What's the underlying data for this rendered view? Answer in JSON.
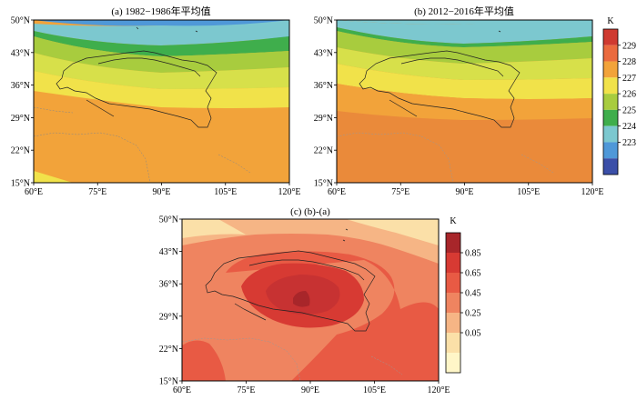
{
  "panels": [
    {
      "id": "a",
      "title": "(a) 1982−1986年平均值",
      "unit": "K",
      "lat_ticks": [
        "50°N",
        "43°N",
        "36°N",
        "29°N",
        "22°N",
        "15°N"
      ],
      "lon_ticks": [
        "60°E",
        "75°E",
        "90°E",
        "105°E",
        "120°E"
      ],
      "lon_range": [
        60,
        120
      ],
      "lat_range": [
        15,
        50
      ]
    },
    {
      "id": "b",
      "title": "(b) 2012−2016年平均值",
      "unit": "K",
      "lat_ticks": [
        "50°N",
        "43°N",
        "36°N",
        "29°N",
        "22°N",
        "15°N"
      ],
      "lon_ticks": [
        "60°E",
        "75°E",
        "90°E",
        "105°E",
        "120°E"
      ],
      "lon_range": [
        60,
        120
      ],
      "lat_range": [
        15,
        50
      ]
    },
    {
      "id": "c",
      "title": "(c) (b)-(a)",
      "unit": "K",
      "lat_ticks": [
        "50°N",
        "43°N",
        "36°N",
        "29°N",
        "22°N",
        "15°N"
      ],
      "lon_ticks": [
        "60°E",
        "75°E",
        "90°E",
        "105°E",
        "120°E"
      ],
      "lon_range": [
        60,
        120
      ],
      "lat_range": [
        15,
        50
      ]
    }
  ],
  "colorbar_top": {
    "unit": "K",
    "labels": [
      "229",
      "228",
      "227",
      "226",
      "225",
      "224",
      "223"
    ],
    "colors": [
      "#cf3a30",
      "#ea6a3e",
      "#f2a33a",
      "#f1e24a",
      "#a8cc3e",
      "#3fae4c",
      "#7cc8cf",
      "#4f98d8",
      "#3b4fa8"
    ]
  },
  "colorbar_bottom": {
    "unit": "K",
    "labels": [
      "0.85",
      "0.65",
      "0.45",
      "0.25",
      "0.05"
    ],
    "colors": [
      "#a8262a",
      "#d73a33",
      "#e85a44",
      "#ef8460",
      "#f6b585",
      "#fbe0a8",
      "#fff6c8"
    ]
  }
}
